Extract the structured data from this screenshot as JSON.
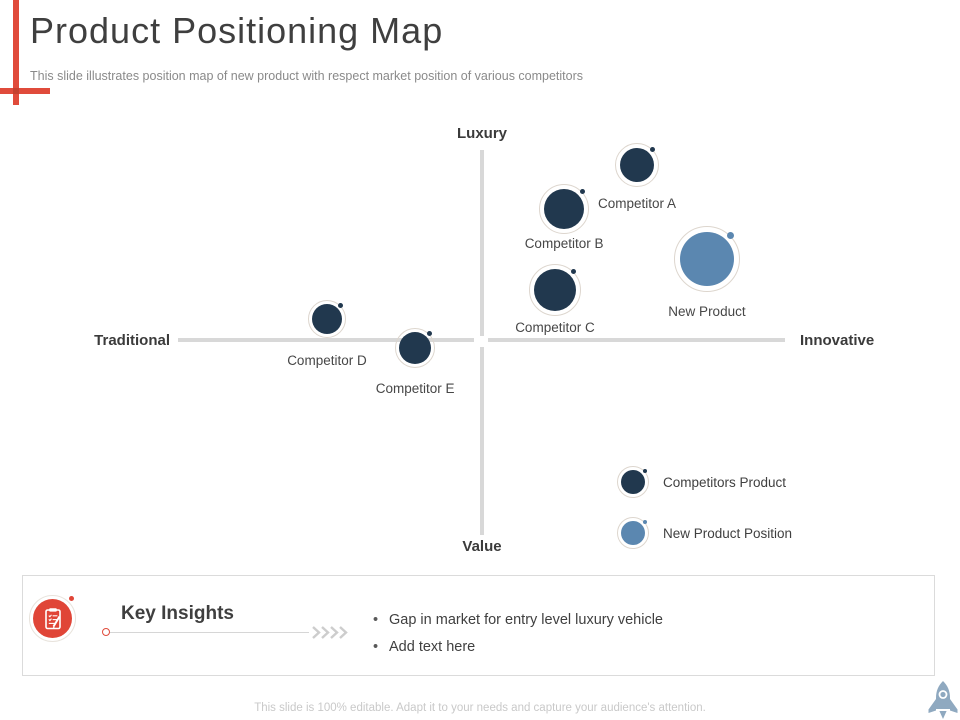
{
  "header": {
    "title": "Product Positioning Map",
    "subtitle": "This slide illustrates position map of new product with respect market position of various competitors"
  },
  "footer": {
    "note": "This slide is 100% editable. Adapt it to your needs and capture your audience's attention."
  },
  "key_insights": {
    "heading": "Key Insights",
    "bullets": [
      "Gap in market for entry level luxury vehicle",
      "Add text here"
    ],
    "icon": "clipboard-checklist-icon"
  },
  "palette": {
    "accent_red": "#E04B3B",
    "competitor_navy": "#21384E",
    "new_product_blue": "#5B87B0",
    "marker_ring_gray": "#DDD6CE",
    "axis_gray": "#D8D8D8",
    "text_dark": "#3F3F3F",
    "text_muted": "#8A8A8A",
    "footer_gray": "#C9C9C9"
  },
  "chart_data": {
    "type": "scatter",
    "title": "Product positioning quadrant map",
    "axis_labels": {
      "top": "Luxury",
      "bottom": "Value",
      "left": "Traditional",
      "right": "Innovative"
    },
    "x_range": [
      -1,
      1
    ],
    "y_range": [
      -1,
      1
    ],
    "grid": false,
    "legend_position": "bottom-right",
    "series": [
      {
        "name": "Competitors Product",
        "color": "#21384E",
        "points": [
          {
            "label": "Competitor A",
            "x": 0.51,
            "y": 0.91,
            "r": 17,
            "ring_r": 22,
            "label_dy": 31
          },
          {
            "label": "Competitor B",
            "x": 0.27,
            "y": 0.68,
            "r": 20,
            "ring_r": 25,
            "label_dy": 27
          },
          {
            "label": "Competitor C",
            "x": 0.24,
            "y": 0.26,
            "r": 21,
            "ring_r": 26,
            "label_dy": 30
          },
          {
            "label": "Competitor D",
            "x": -0.51,
            "y": 0.11,
            "r": 15,
            "ring_r": 19,
            "label_dy": 34
          },
          {
            "label": "Competitor E",
            "x": -0.22,
            "y": -0.04,
            "r": 16,
            "ring_r": 20,
            "label_dy": 33
          }
        ]
      },
      {
        "name": "New Product Position",
        "color": "#5B87B0",
        "points": [
          {
            "label": "New Product",
            "x": 0.74,
            "y": 0.42,
            "r": 27,
            "ring_r": 33,
            "label_dy": 45
          }
        ]
      }
    ],
    "legend": [
      {
        "label": "Competitors Product",
        "color": "#21384E"
      },
      {
        "label": "New Product Position",
        "color": "#5B87B0"
      }
    ]
  }
}
